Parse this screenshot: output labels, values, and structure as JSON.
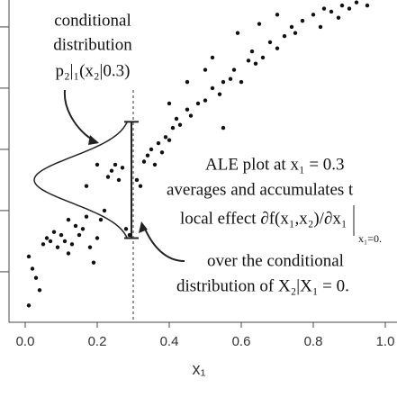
{
  "chart_data": {
    "type": "scatter",
    "x_label": "x₁",
    "x": [
      0.01,
      0.02,
      0.03,
      0.04,
      0.01,
      0.05,
      0.07,
      0.08,
      0.06,
      0.09,
      0.1,
      0.11,
      0.12,
      0.13,
      0.14,
      0.15,
      0.16,
      0.17,
      0.18,
      0.19,
      0.2,
      0.21,
      0.22,
      0.23,
      0.24,
      0.25,
      0.26,
      0.27,
      0.2,
      0.17,
      0.12,
      0.28,
      0.29,
      0.31,
      0.32,
      0.33,
      0.34,
      0.35,
      0.36,
      0.37,
      0.38,
      0.39,
      0.4,
      0.41,
      0.42,
      0.43,
      0.45,
      0.46,
      0.48,
      0.5,
      0.52,
      0.54,
      0.55,
      0.57,
      0.58,
      0.6,
      0.62,
      0.63,
      0.64,
      0.66,
      0.68,
      0.7,
      0.72,
      0.74,
      0.75,
      0.77,
      0.8,
      0.82,
      0.83,
      0.85,
      0.87,
      0.88,
      0.9,
      0.92,
      0.95,
      0.65,
      0.59,
      0.5,
      0.45,
      0.52,
      0.7,
      0.4,
      0.55
    ],
    "values": [
      0.05,
      0.01,
      -0.02,
      -0.06,
      -0.11,
      0.09,
      0.1,
      0.13,
      0.11,
      0.08,
      0.12,
      0.1,
      0.06,
      0.09,
      0.15,
      0.12,
      0.14,
      0.18,
      0.08,
      0.03,
      0.11,
      0.17,
      0.2,
      0.31,
      0.33,
      0.35,
      0.3,
      0.34,
      0.35,
      0.28,
      0.17,
      0.14,
      0.12,
      0.3,
      0.28,
      0.36,
      0.38,
      0.4,
      0.35,
      0.42,
      0.39,
      0.44,
      0.43,
      0.47,
      0.5,
      0.48,
      0.53,
      0.51,
      0.55,
      0.56,
      0.6,
      0.58,
      0.62,
      0.63,
      0.66,
      0.62,
      0.69,
      0.72,
      0.68,
      0.7,
      0.75,
      0.73,
      0.77,
      0.8,
      0.78,
      0.82,
      0.84,
      0.8,
      0.86,
      0.85,
      0.83,
      0.87,
      0.86,
      0.88,
      0.87,
      0.81,
      0.78,
      0.66,
      0.62,
      0.7,
      0.84,
      0.55,
      0.47
    ],
    "color": "#111111",
    "xlim": [
      -0.045,
      1.0325
    ],
    "ylim": [
      -0.165,
      0.888
    ],
    "xticks": [
      {
        "value": 0,
        "label": "0.0"
      },
      0.2,
      0.4,
      0.6,
      0.8,
      {
        "value": 1,
        "label": "1.0"
      }
    ],
    "yticks_unlabeled": [
      0,
      0.2,
      0.4,
      0.6,
      0.8
    ],
    "dashed_x": 0.3,
    "interval": [
      0.11,
      0.49
    ],
    "annotations": [
      "conditional",
      "distribution",
      "p₂|₁(x₂|0.3)",
      "ALE plot at x₁ = 0.3",
      "averages and accumulates t",
      "local effect ∂f(x₁,x₂)/∂x₁",
      "x₁=0.",
      "over the conditional",
      "distribution of X₂|X₁ = 0."
    ]
  }
}
